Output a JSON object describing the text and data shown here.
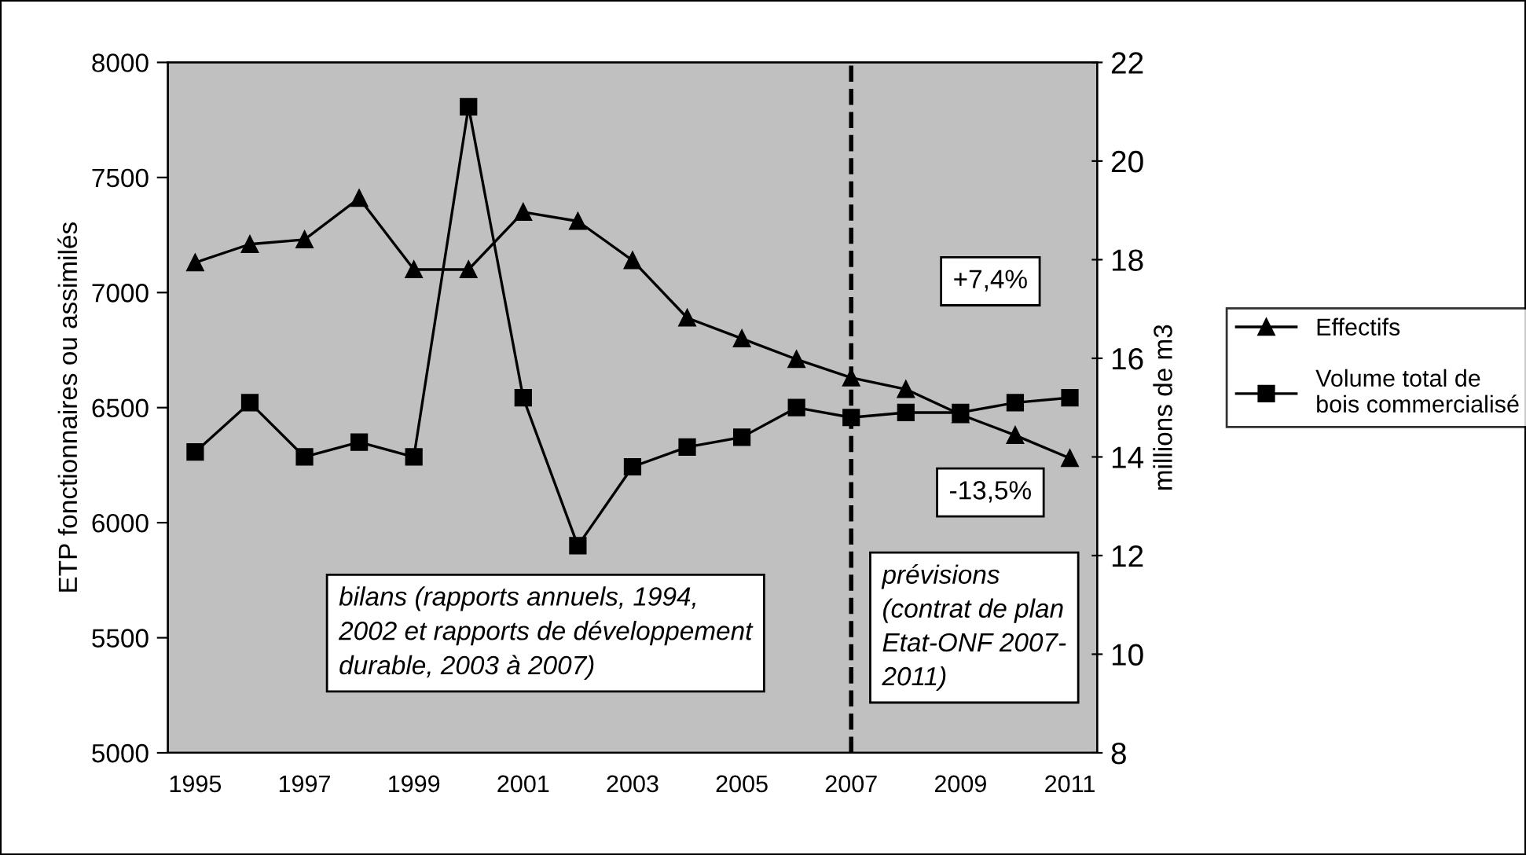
{
  "chart_data": {
    "type": "line",
    "categories": [
      "1995",
      null,
      "1997",
      null,
      "1999",
      null,
      "2001",
      null,
      "2003",
      null,
      "2005",
      null,
      "2007",
      null,
      "2009",
      null,
      "2011"
    ],
    "ylabel": "ETP fonctionnaires ou assimilés",
    "y2label": "millions de m3",
    "ylim": [
      5000,
      8000
    ],
    "yticks": [
      5000,
      5500,
      6000,
      6500,
      7000,
      7500,
      8000
    ],
    "y2lim": [
      8,
      22
    ],
    "y2ticks": [
      8,
      10,
      12,
      14,
      16,
      18,
      20,
      22
    ],
    "series": [
      {
        "name": "Effectifs",
        "color": "#000000",
        "marker": "triangle",
        "values": [
          7130,
          7210,
          7230,
          7410,
          7100,
          7100,
          7350,
          7310,
          7140,
          6890,
          6800,
          6710,
          6630,
          6580,
          6470,
          6380,
          6280
        ]
      },
      {
        "name": "Volume total de\nbois commercialisé",
        "color": "#000000",
        "marker": "square",
        "axis": "y2",
        "values": [
          14.1,
          15.1,
          14.0,
          14.3,
          14.0,
          21.1,
          15.2,
          12.2,
          13.8,
          14.2,
          14.4,
          15.0,
          14.8,
          14.9,
          14.9,
          15.1,
          15.2
        ]
      }
    ],
    "ref_lines": [
      {
        "axis": "x",
        "value": "2007",
        "color": "#000000",
        "line_style": "dashed"
      }
    ],
    "annotations": [
      "+7,4%",
      "-13,5%",
      "bilans (rapports annuels, 1994,\n2002 et rapports de développement\ndurable, 2003 à 2007)",
      "prévisions\n(contrat de plan\nEtat-ONF 2007-\n2011)"
    ],
    "legend": "right",
    "grid": false,
    "line_style": "solid"
  }
}
